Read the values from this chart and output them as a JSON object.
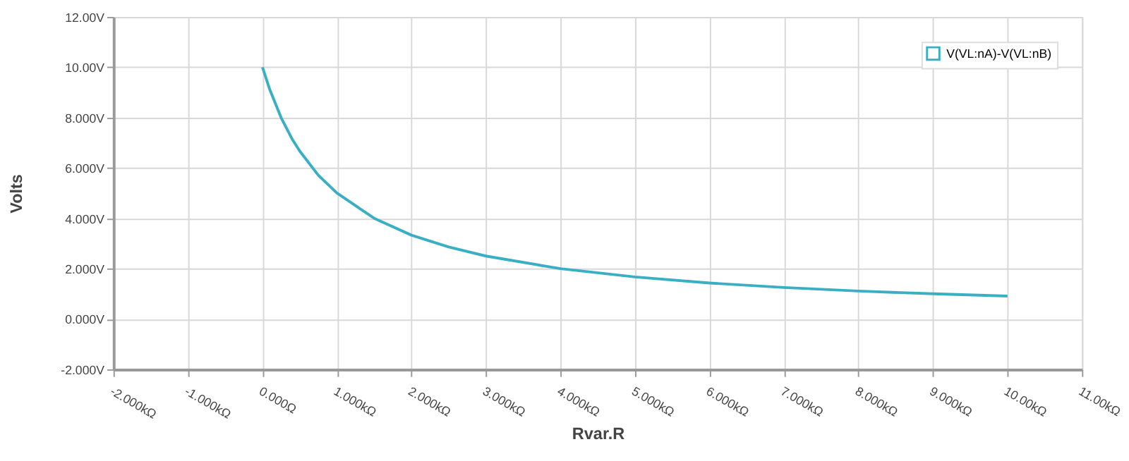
{
  "chart_data": {
    "type": "line",
    "xlabel": "Rvar.R",
    "ylabel": "Volts",
    "x": [
      0,
      0.1,
      0.25,
      0.4,
      0.5,
      0.75,
      1,
      1.5,
      2,
      2.5,
      3,
      4,
      5,
      6,
      7,
      8,
      9,
      10
    ],
    "series": [
      {
        "name": "V(VL:nA)-V(VL:nB)",
        "color": "#3aafc4",
        "values": [
          10,
          9.1,
          8.0,
          7.14,
          6.67,
          5.71,
          5.0,
          4.0,
          3.33,
          2.86,
          2.5,
          2.0,
          1.67,
          1.43,
          1.25,
          1.11,
          1.0,
          0.91
        ]
      }
    ],
    "xlim": [
      -2,
      11
    ],
    "xticks": [
      {
        "value": -2,
        "label": "-2.000kΩ"
      },
      {
        "value": -1,
        "label": "-1.000kΩ"
      },
      {
        "value": 0,
        "label": "0.000Ω"
      },
      {
        "value": 1,
        "label": "1.000kΩ"
      },
      {
        "value": 2,
        "label": "2.000kΩ"
      },
      {
        "value": 3,
        "label": "3.000kΩ"
      },
      {
        "value": 4,
        "label": "4.000kΩ"
      },
      {
        "value": 5,
        "label": "5.000kΩ"
      },
      {
        "value": 6,
        "label": "6.000kΩ"
      },
      {
        "value": 7,
        "label": "7.000kΩ"
      },
      {
        "value": 8,
        "label": "8.000kΩ"
      },
      {
        "value": 9,
        "label": "9.000kΩ"
      },
      {
        "value": 10,
        "label": "10.00kΩ"
      },
      {
        "value": 11,
        "label": "11.00kΩ"
      }
    ],
    "ylim": [
      -2,
      12
    ],
    "yticks": [
      {
        "value": -2,
        "label": "-2.000V"
      },
      {
        "value": 0,
        "label": "0.000V"
      },
      {
        "value": 2,
        "label": "2.000V"
      },
      {
        "value": 4,
        "label": "4.000V"
      },
      {
        "value": 6,
        "label": "6.000V"
      },
      {
        "value": 8,
        "label": "8.000V"
      },
      {
        "value": 10,
        "label": "10.00V"
      },
      {
        "value": 12,
        "label": "12.00V"
      }
    ],
    "grid": true,
    "legend": "top right",
    "marker": "none",
    "line_style": "solid"
  }
}
